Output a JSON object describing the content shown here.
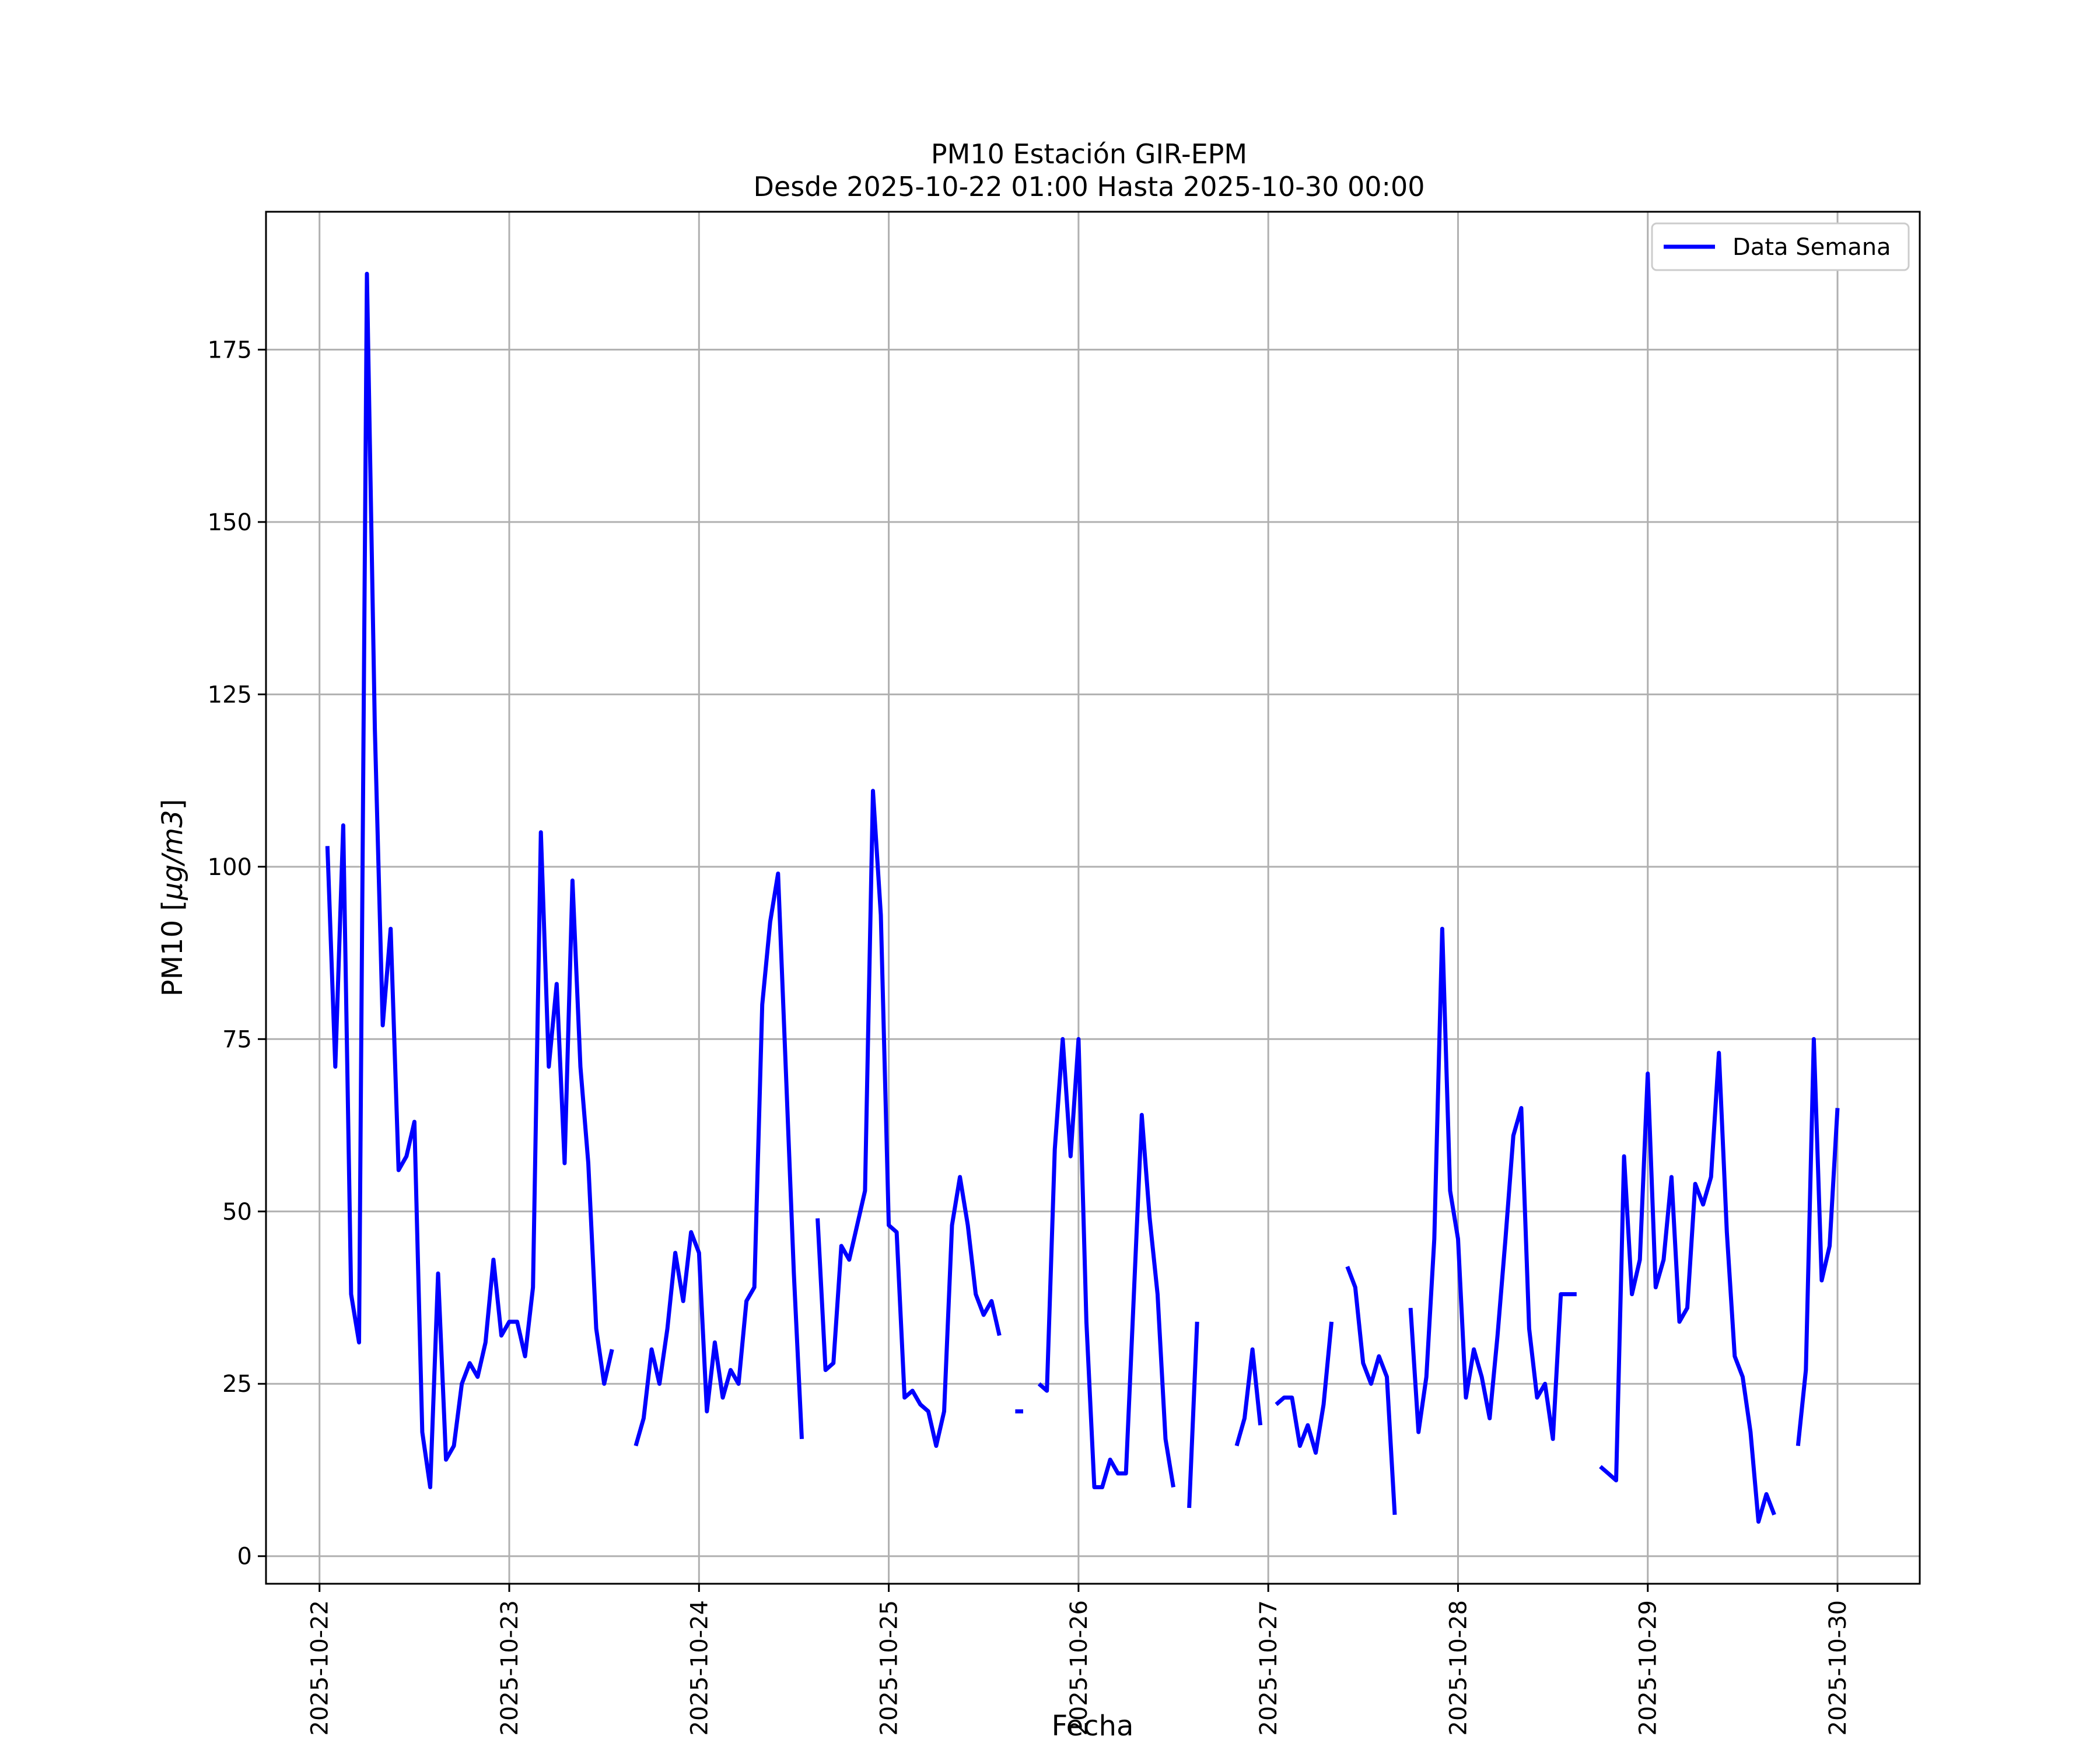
{
  "chart_data": {
    "type": "line",
    "title": "PM10 Estación GIR-EPM",
    "subtitle": "Desde 2025-10-22 01:00 Hasta 2025-10-30 00:00",
    "xlabel": "Fecha",
    "ylabel": "PM10 [μg/m3]",
    "xlim": [
      "2025-10-21 17:14",
      "2025-10-30 10:24"
    ],
    "ylim": [
      -4,
      195
    ],
    "x_ticks": [
      "2025-10-22",
      "2025-10-23",
      "2025-10-24",
      "2025-10-25",
      "2025-10-26",
      "2025-10-27",
      "2025-10-28",
      "2025-10-29",
      "2025-10-30"
    ],
    "y_ticks": [
      0,
      25,
      50,
      75,
      100,
      125,
      150,
      175
    ],
    "grid": true,
    "legend_position": "top-right",
    "colors": {
      "series": "#0000ff",
      "grid": "#b0b0b0",
      "frame": "#000000"
    },
    "series": [
      {
        "name": "Data Semana",
        "color": "#0000ff",
        "points": [
          [
            "2025-10-22 01:00",
            103
          ],
          [
            "2025-10-22 02:00",
            71
          ],
          [
            "2025-10-22 03:00",
            106
          ],
          [
            "2025-10-22 04:00",
            38
          ],
          [
            "2025-10-22 05:00",
            31
          ],
          [
            "2025-10-22 06:00",
            186
          ],
          [
            "2025-10-22 07:00",
            120
          ],
          [
            "2025-10-22 08:00",
            77
          ],
          [
            "2025-10-22 09:00",
            91
          ],
          [
            "2025-10-22 10:00",
            56
          ],
          [
            "2025-10-22 11:00",
            58
          ],
          [
            "2025-10-22 12:00",
            63
          ],
          [
            "2025-10-22 13:00",
            18
          ],
          [
            "2025-10-22 14:00",
            10
          ],
          [
            "2025-10-22 15:00",
            41
          ],
          [
            "2025-10-22 16:00",
            14
          ],
          [
            "2025-10-22 17:00",
            16
          ],
          [
            "2025-10-22 18:00",
            25
          ],
          [
            "2025-10-22 19:00",
            28
          ],
          [
            "2025-10-22 20:00",
            26
          ],
          [
            "2025-10-22 21:00",
            31
          ],
          [
            "2025-10-22 22:00",
            43
          ],
          [
            "2025-10-22 23:00",
            32
          ],
          [
            "2025-10-23 00:00",
            34
          ],
          [
            "2025-10-23 01:00",
            34
          ],
          [
            "2025-10-23 02:00",
            29
          ],
          [
            "2025-10-23 03:00",
            39
          ],
          [
            "2025-10-23 04:00",
            105
          ],
          [
            "2025-10-23 05:00",
            71
          ],
          [
            "2025-10-23 06:00",
            83
          ],
          [
            "2025-10-23 07:00",
            57
          ],
          [
            "2025-10-23 08:00",
            98
          ],
          [
            "2025-10-23 09:00",
            71
          ],
          [
            "2025-10-23 10:00",
            57
          ],
          [
            "2025-10-23 11:00",
            33
          ],
          [
            "2025-10-23 12:00",
            25
          ],
          [
            "2025-10-23 13:00",
            30
          ],
          null,
          [
            "2025-10-23 16:00",
            16
          ],
          [
            "2025-10-23 17:00",
            20
          ],
          [
            "2025-10-23 18:00",
            30
          ],
          [
            "2025-10-23 19:00",
            25
          ],
          [
            "2025-10-23 20:00",
            33
          ],
          [
            "2025-10-23 21:00",
            44
          ],
          [
            "2025-10-23 22:00",
            37
          ],
          [
            "2025-10-23 23:00",
            47
          ],
          [
            "2025-10-24 00:00",
            44
          ],
          [
            "2025-10-24 01:00",
            21
          ],
          [
            "2025-10-24 02:00",
            31
          ],
          [
            "2025-10-24 03:00",
            23
          ],
          [
            "2025-10-24 04:00",
            27
          ],
          [
            "2025-10-24 05:00",
            25
          ],
          [
            "2025-10-24 06:00",
            37
          ],
          [
            "2025-10-24 07:00",
            39
          ],
          [
            "2025-10-24 08:00",
            80
          ],
          [
            "2025-10-24 09:00",
            92
          ],
          [
            "2025-10-24 10:00",
            99
          ],
          [
            "2025-10-24 11:00",
            70
          ],
          [
            "2025-10-24 12:00",
            41
          ],
          [
            "2025-10-24 13:00",
            17
          ],
          null,
          [
            "2025-10-24 15:00",
            49
          ],
          [
            "2025-10-24 16:00",
            27
          ],
          [
            "2025-10-24 17:00",
            28
          ],
          [
            "2025-10-24 18:00",
            45
          ],
          [
            "2025-10-24 19:00",
            43
          ],
          [
            "2025-10-24 20:00",
            48
          ],
          [
            "2025-10-24 21:00",
            53
          ],
          [
            "2025-10-24 22:00",
            111
          ],
          [
            "2025-10-24 23:00",
            93
          ],
          [
            "2025-10-25 00:00",
            48
          ],
          [
            "2025-10-25 01:00",
            47
          ],
          [
            "2025-10-25 02:00",
            23
          ],
          [
            "2025-10-25 03:00",
            24
          ],
          [
            "2025-10-25 04:00",
            22
          ],
          [
            "2025-10-25 05:00",
            21
          ],
          [
            "2025-10-25 06:00",
            16
          ],
          [
            "2025-10-25 07:00",
            21
          ],
          [
            "2025-10-25 08:00",
            48
          ],
          [
            "2025-10-25 09:00",
            55
          ],
          [
            "2025-10-25 10:00",
            48
          ],
          [
            "2025-10-25 11:00",
            38
          ],
          [
            "2025-10-25 12:00",
            35
          ],
          [
            "2025-10-25 13:00",
            37
          ],
          [
            "2025-10-25 14:00",
            32
          ],
          null,
          [
            "2025-10-25 16:00",
            21
          ],
          [
            "2025-10-25 17:00",
            21
          ],
          null,
          [
            "2025-10-25 19:00",
            25
          ],
          [
            "2025-10-25 20:00",
            24
          ],
          [
            "2025-10-25 21:00",
            59
          ],
          [
            "2025-10-25 22:00",
            75
          ],
          [
            "2025-10-25 23:00",
            58
          ],
          [
            "2025-10-26 00:00",
            75
          ],
          [
            "2025-10-26 01:00",
            34
          ],
          [
            "2025-10-26 02:00",
            10
          ],
          [
            "2025-10-26 03:00",
            10
          ],
          [
            "2025-10-26 04:00",
            14
          ],
          [
            "2025-10-26 05:00",
            12
          ],
          [
            "2025-10-26 06:00",
            12
          ],
          [
            "2025-10-26 07:00",
            38
          ],
          [
            "2025-10-26 08:00",
            64
          ],
          [
            "2025-10-26 09:00",
            49
          ],
          [
            "2025-10-26 10:00",
            38
          ],
          [
            "2025-10-26 11:00",
            17
          ],
          [
            "2025-10-26 12:00",
            10
          ],
          null,
          [
            "2025-10-26 14:00",
            7
          ],
          [
            "2025-10-26 15:00",
            34
          ],
          null,
          [
            "2025-10-26 20:00",
            16
          ],
          [
            "2025-10-26 21:00",
            20
          ],
          [
            "2025-10-26 22:00",
            30
          ],
          [
            "2025-10-26 23:00",
            19
          ],
          null,
          [
            "2025-10-27 01:00",
            22
          ],
          [
            "2025-10-27 02:00",
            23
          ],
          [
            "2025-10-27 03:00",
            23
          ],
          [
            "2025-10-27 04:00",
            16
          ],
          [
            "2025-10-27 05:00",
            19
          ],
          [
            "2025-10-27 06:00",
            15
          ],
          [
            "2025-10-27 07:00",
            22
          ],
          [
            "2025-10-27 08:00",
            34
          ],
          null,
          [
            "2025-10-27 10:00",
            42
          ],
          [
            "2025-10-27 11:00",
            39
          ],
          [
            "2025-10-27 12:00",
            28
          ],
          [
            "2025-10-27 13:00",
            25
          ],
          [
            "2025-10-27 14:00",
            29
          ],
          [
            "2025-10-27 15:00",
            26
          ],
          [
            "2025-10-27 16:00",
            6
          ],
          null,
          [
            "2025-10-27 18:00",
            36
          ],
          [
            "2025-10-27 19:00",
            18
          ],
          [
            "2025-10-27 20:00",
            26
          ],
          [
            "2025-10-27 21:00",
            46
          ],
          [
            "2025-10-27 22:00",
            91
          ],
          [
            "2025-10-27 23:00",
            53
          ],
          [
            "2025-10-28 00:00",
            46
          ],
          [
            "2025-10-28 01:00",
            23
          ],
          [
            "2025-10-28 02:00",
            30
          ],
          [
            "2025-10-28 03:00",
            26
          ],
          [
            "2025-10-28 04:00",
            20
          ],
          [
            "2025-10-28 05:00",
            32
          ],
          [
            "2025-10-28 06:00",
            46
          ],
          [
            "2025-10-28 07:00",
            61
          ],
          [
            "2025-10-28 08:00",
            65
          ],
          [
            "2025-10-28 09:00",
            33
          ],
          [
            "2025-10-28 10:00",
            23
          ],
          [
            "2025-10-28 11:00",
            25
          ],
          [
            "2025-10-28 12:00",
            17
          ],
          [
            "2025-10-28 13:00",
            38
          ],
          [
            "2025-10-28 14:00",
            38
          ],
          [
            "2025-10-28 15:00",
            38
          ],
          null,
          [
            "2025-10-28 18:00",
            13
          ],
          [
            "2025-10-28 19:00",
            12
          ],
          [
            "2025-10-28 20:00",
            11
          ],
          [
            "2025-10-28 21:00",
            58
          ],
          [
            "2025-10-28 22:00",
            38
          ],
          [
            "2025-10-28 23:00",
            43
          ],
          [
            "2025-10-29 00:00",
            70
          ],
          [
            "2025-10-29 01:00",
            39
          ],
          [
            "2025-10-29 02:00",
            43
          ],
          [
            "2025-10-29 03:00",
            55
          ],
          [
            "2025-10-29 04:00",
            34
          ],
          [
            "2025-10-29 05:00",
            36
          ],
          [
            "2025-10-29 06:00",
            54
          ],
          [
            "2025-10-29 07:00",
            51
          ],
          [
            "2025-10-29 08:00",
            55
          ],
          [
            "2025-10-29 09:00",
            73
          ],
          [
            "2025-10-29 10:00",
            47
          ],
          [
            "2025-10-29 11:00",
            29
          ],
          [
            "2025-10-29 12:00",
            26
          ],
          [
            "2025-10-29 13:00",
            18
          ],
          [
            "2025-10-29 14:00",
            5
          ],
          [
            "2025-10-29 15:00",
            9
          ],
          [
            "2025-10-29 16:00",
            6
          ],
          null,
          [
            "2025-10-29 19:00",
            16
          ],
          [
            "2025-10-29 20:00",
            27
          ],
          [
            "2025-10-29 21:00",
            75
          ],
          [
            "2025-10-29 22:00",
            40
          ],
          [
            "2025-10-29 23:00",
            45
          ],
          [
            "2025-10-30 00:00",
            65
          ]
        ]
      }
    ]
  }
}
